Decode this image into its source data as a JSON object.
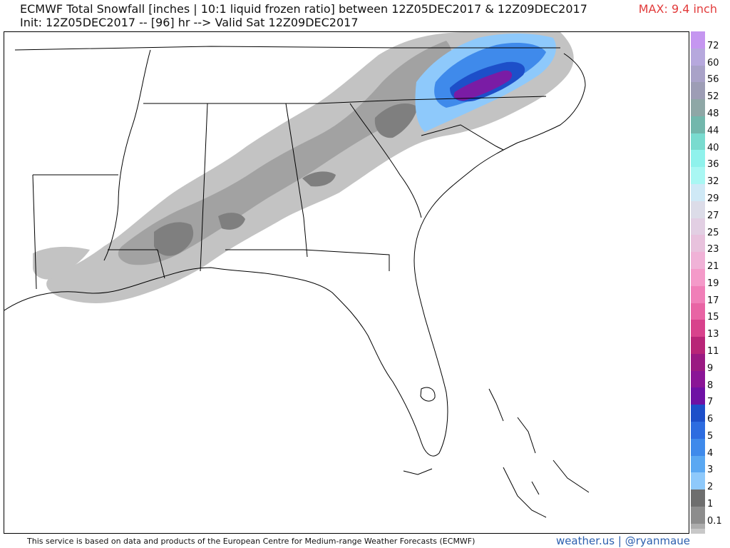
{
  "header": {
    "title_line1": "ECMWF Total Snowfall [inches | 10:1 liquid frozen ratio] between 12Z05DEC2017 & 12Z09DEC2017",
    "title_line2": "Init: 12Z05DEC2017 -- [96] hr --> Valid Sat 12Z09DEC2017",
    "max_label": "MAX: 9.4 inch"
  },
  "legend": {
    "levels": [
      {
        "label": "72",
        "color": "#c596f0"
      },
      {
        "label": "60",
        "color": "#b6a8dd"
      },
      {
        "label": "56",
        "color": "#a9a2c8"
      },
      {
        "label": "52",
        "color": "#9d9db5"
      },
      {
        "label": "48",
        "color": "#8ea7a6"
      },
      {
        "label": "44",
        "color": "#72b7ac"
      },
      {
        "label": "40",
        "color": "#79dbcf"
      },
      {
        "label": "36",
        "color": "#8ff2ec"
      },
      {
        "label": "32",
        "color": "#a9f7f3"
      },
      {
        "label": "29",
        "color": "#cfe9f6"
      },
      {
        "label": "27",
        "color": "#dcdce8"
      },
      {
        "label": "25",
        "color": "#e2cfe3"
      },
      {
        "label": "23",
        "color": "#e8c2dd"
      },
      {
        "label": "21",
        "color": "#f0b2d7"
      },
      {
        "label": "19",
        "color": "#f49ac9"
      },
      {
        "label": "17",
        "color": "#f07fb8"
      },
      {
        "label": "15",
        "color": "#e864a4"
      },
      {
        "label": "13",
        "color": "#d8428c"
      },
      {
        "label": "11",
        "color": "#b82577"
      },
      {
        "label": "9",
        "color": "#9a1a82"
      },
      {
        "label": "8",
        "color": "#8a1596"
      },
      {
        "label": "7",
        "color": "#6e11a4"
      },
      {
        "label": "6",
        "color": "#1d4fc9"
      },
      {
        "label": "5",
        "color": "#2d6ce0"
      },
      {
        "label": "4",
        "color": "#3f8aeb"
      },
      {
        "label": "3",
        "color": "#5aa8f2"
      },
      {
        "label": "2",
        "color": "#8ec9fb"
      },
      {
        "label": "1",
        "color": "#6e6e6e"
      },
      {
        "label": "0.1",
        "color": "#8d8d8d"
      }
    ],
    "extra_gray_1": "#adadad",
    "extra_gray_2": "#c8c8c8"
  },
  "footer": {
    "credit": "This service is based on data and products of the European Centre for Medium-range Weather Forecasts (ECMWF)",
    "brand": "weather.us | @ryanmaue"
  },
  "colors": {
    "max_text": "#e23b3b",
    "brand_text": "#2b5fae",
    "snow_light": "#c3c3c3",
    "snow_mid": "#a2a2a2",
    "snow_dark": "#7f7f7f",
    "snow_blue_light": "#8ec9fb",
    "snow_blue_mid": "#3f8aeb",
    "snow_blue_dark": "#1d4fc9",
    "snow_purple": "#7a1ca5"
  }
}
